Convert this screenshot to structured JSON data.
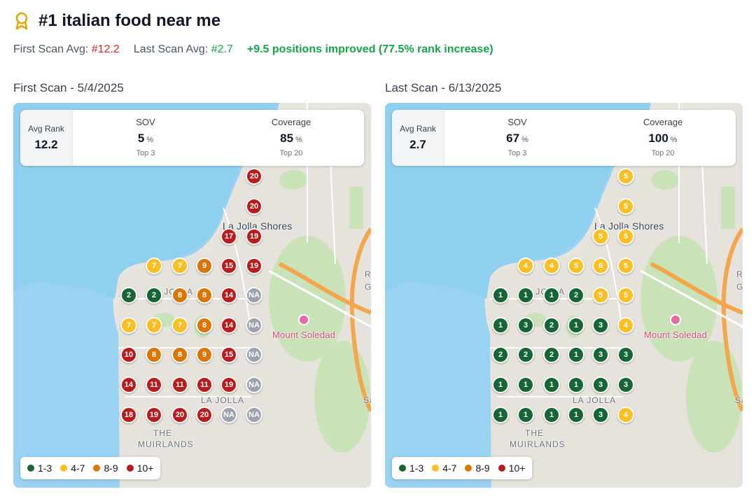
{
  "header": {
    "title": "#1 italian food near me",
    "first_avg_label": "First Scan Avg:",
    "first_avg_value": "#12.2",
    "last_avg_label": "Last Scan Avg:",
    "last_avg_value": "#2.7",
    "improvement": "+9.5 positions improved (77.5% rank increase)"
  },
  "colors": {
    "top3": "#166534",
    "mid": "#fbbf24",
    "low": "#d97706",
    "bad": "#b91c1c",
    "na": "#9ca3af"
  },
  "panels": [
    {
      "title": "First Scan - 5/4/2025",
      "avg_label": "Avg Rank",
      "avg_value": "12.2",
      "sov_label": "SOV",
      "sov_value": "5",
      "sov_sub": "Top 3",
      "cov_label": "Coverage",
      "cov_value": "85",
      "cov_sub": "Top 20",
      "pct": "%",
      "grid": [
        [
          null,
          null,
          null,
          null,
          null,
          "20"
        ],
        [
          null,
          null,
          null,
          null,
          null,
          "20"
        ],
        [
          null,
          null,
          null,
          null,
          "17",
          "19"
        ],
        [
          null,
          "7",
          "7",
          "9",
          "15",
          "19"
        ],
        [
          "2",
          "2",
          "8",
          "8",
          "14",
          "NA"
        ],
        [
          "7",
          "7",
          "7",
          "8",
          "14",
          "NA"
        ],
        [
          "10",
          "8",
          "8",
          "9",
          "15",
          "NA"
        ],
        [
          "14",
          "11",
          "11",
          "11",
          "19",
          "NA"
        ],
        [
          "18",
          "19",
          "20",
          "20",
          "NA",
          "NA"
        ]
      ]
    },
    {
      "title": "Last Scan - 6/13/2025",
      "avg_label": "Avg Rank",
      "avg_value": "2.7",
      "sov_label": "SOV",
      "sov_value": "67",
      "sov_sub": "Top 3",
      "cov_label": "Coverage",
      "cov_value": "100",
      "cov_sub": "Top 20",
      "pct": "%",
      "grid": [
        [
          null,
          null,
          null,
          null,
          null,
          "5"
        ],
        [
          null,
          null,
          null,
          null,
          null,
          "5"
        ],
        [
          null,
          null,
          null,
          null,
          "5",
          "5"
        ],
        [
          null,
          "4",
          "4",
          "5",
          "6",
          "5"
        ],
        [
          "1",
          "1",
          "1",
          "2",
          "5",
          "5"
        ],
        [
          "1",
          "3",
          "2",
          "1",
          "3",
          "4"
        ],
        [
          "2",
          "2",
          "2",
          "1",
          "3",
          "3"
        ],
        [
          "1",
          "1",
          "1",
          "1",
          "3",
          "3"
        ],
        [
          "1",
          "1",
          "1",
          "1",
          "3",
          "4"
        ]
      ]
    }
  ],
  "legend": {
    "a": "1-3",
    "b": "4-7",
    "c": "8-9",
    "d": "10+"
  },
  "map_labels": {
    "shores": "La Jolla Shores",
    "soledad": "Mount Soledad",
    "la_jolla_1": "LA JOLLA",
    "la_jolla_2": "LA JOLLA",
    "muirlands_1": "THE",
    "muirlands_2": "MUIRLANDS",
    "edge_r": "R",
    "edge_g": "G",
    "edge_sa": "Sa"
  }
}
